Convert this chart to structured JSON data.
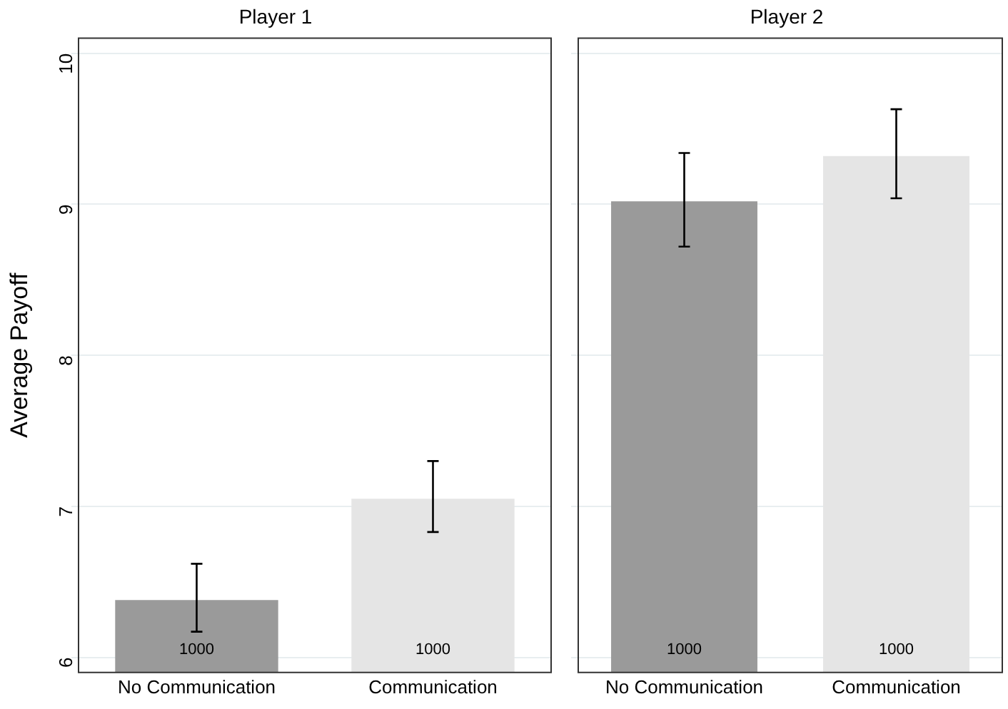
{
  "chart_data": [
    {
      "type": "bar",
      "title": "Player 1",
      "ylabel": "Average Payoff",
      "categories": [
        "No Communication",
        "Communication"
      ],
      "values": [
        6.38,
        7.05
      ],
      "colors": [
        "#9a9a9a",
        "#e5e5e5"
      ],
      "errors": [
        [
          6.17,
          6.62
        ],
        [
          6.83,
          7.3
        ]
      ],
      "ylim": [
        5.9,
        10.1
      ],
      "yticks": [
        6,
        7,
        8,
        9,
        10
      ],
      "grid": "y",
      "legend": false,
      "annotations": [
        "1000",
        "1000"
      ]
    },
    {
      "type": "bar",
      "title": "Player 2",
      "categories": [
        "No Communication",
        "Communication"
      ],
      "values": [
        9.02,
        9.32
      ],
      "colors": [
        "#9a9a9a",
        "#e5e5e5"
      ],
      "errors": [
        [
          8.72,
          9.34
        ],
        [
          9.04,
          9.63
        ]
      ],
      "ylim": [
        5.9,
        10.1
      ],
      "yticks": [
        6,
        7,
        8,
        9,
        10
      ],
      "grid": "y",
      "legend": false,
      "tick_labels": "x",
      "annotations": [
        "1000",
        "1000"
      ]
    }
  ]
}
